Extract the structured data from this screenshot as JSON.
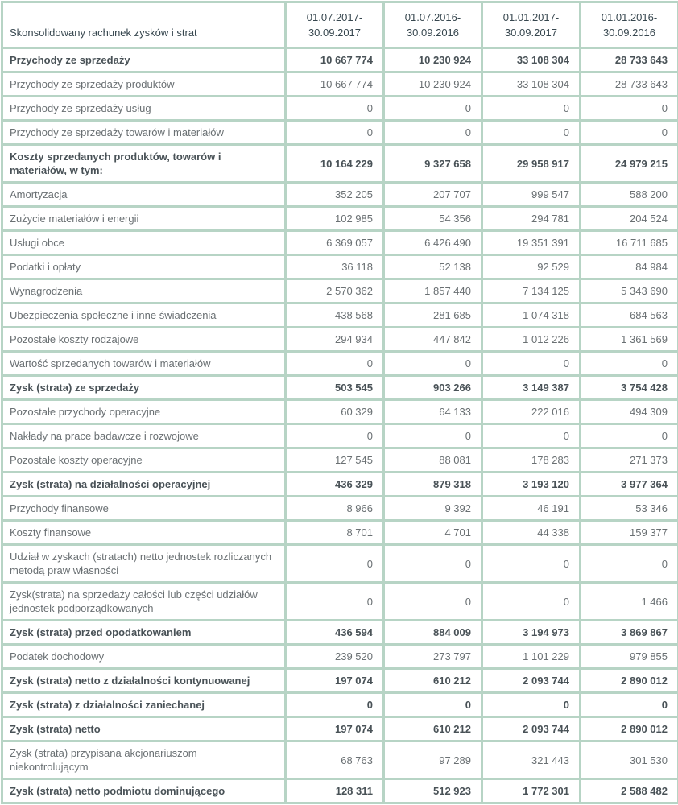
{
  "colors": {
    "border": "#b7d4c5",
    "header_bg": "#a6c9b8",
    "header_text": "#37474f",
    "text": "#6a7073",
    "bold_text": "#495257"
  },
  "table": {
    "title": "Skonsolidowany rachunek zysków i strat",
    "columns": [
      {
        "line1": "01.07.2017-",
        "line2": "30.09.2017"
      },
      {
        "line1": "01.07.2016-",
        "line2": "30.09.2016"
      },
      {
        "line1": "01.01.2017-",
        "line2": "30.09.2017"
      },
      {
        "line1": "01.01.2016-",
        "line2": "30.09.2016"
      }
    ],
    "rows": [
      {
        "label": "Przychody ze sprzedaży",
        "values": [
          "10 667 774",
          "10 230 924",
          "33 108 304",
          "28 733 643"
        ],
        "bold": true
      },
      {
        "label": "Przychody ze sprzedaży produktów",
        "values": [
          "10 667 774",
          "10 230 924",
          "33 108 304",
          "28 733 643"
        ],
        "bold": false
      },
      {
        "label": "Przychody ze sprzedaży usług",
        "values": [
          "0",
          "0",
          "0",
          "0"
        ],
        "bold": false
      },
      {
        "label": "Przychody ze sprzedaży towarów i materiałów",
        "values": [
          "0",
          "0",
          "0",
          "0"
        ],
        "bold": false
      },
      {
        "label": "Koszty sprzedanych produktów, towarów i materiałów, w tym:",
        "values": [
          "10 164 229",
          "9 327 658",
          "29 958 917",
          "24 979 215"
        ],
        "bold": true
      },
      {
        "label": "Amortyzacja",
        "values": [
          "352 205",
          "207 707",
          "999 547",
          "588 200"
        ],
        "bold": false
      },
      {
        "label": "Zużycie materiałów i energii",
        "values": [
          "102 985",
          "54 356",
          "294 781",
          "204 524"
        ],
        "bold": false
      },
      {
        "label": "Usługi obce",
        "values": [
          "6 369 057",
          "6 426 490",
          "19 351 391",
          "16 711 685"
        ],
        "bold": false
      },
      {
        "label": "Podatki i opłaty",
        "values": [
          "36 118",
          "52 138",
          "92 529",
          "84 984"
        ],
        "bold": false
      },
      {
        "label": "Wynagrodzenia",
        "values": [
          "2 570 362",
          "1 857 440",
          "7 134 125",
          "5 343 690"
        ],
        "bold": false
      },
      {
        "label": "Ubezpieczenia społeczne i inne świadczenia",
        "values": [
          "438 568",
          "281 685",
          "1 074 318",
          "684 563"
        ],
        "bold": false
      },
      {
        "label": "Pozostałe koszty rodzajowe",
        "values": [
          "294 934",
          "447 842",
          "1 012 226",
          "1 361 569"
        ],
        "bold": false
      },
      {
        "label": "Wartość sprzedanych towarów i materiałów",
        "values": [
          "0",
          "0",
          "0",
          "0"
        ],
        "bold": false
      },
      {
        "label": "Zysk (strata) ze sprzedaży",
        "values": [
          "503 545",
          "903 266",
          "3 149 387",
          "3 754 428"
        ],
        "bold": true
      },
      {
        "label": "Pozostałe przychody operacyjne",
        "values": [
          "60 329",
          "64 133",
          "222 016",
          "494 309"
        ],
        "bold": false
      },
      {
        "label": "Nakłady na prace badawcze i rozwojowe",
        "values": [
          "0",
          "0",
          "0",
          "0"
        ],
        "bold": false
      },
      {
        "label": "Pozostałe koszty operacyjne",
        "values": [
          "127 545",
          "88 081",
          "178 283",
          "271 373"
        ],
        "bold": false
      },
      {
        "label": "Zysk (strata) na działalności operacyjnej",
        "values": [
          "436 329",
          "879 318",
          "3 193 120",
          "3 977 364"
        ],
        "bold": true
      },
      {
        "label": "Przychody finansowe",
        "values": [
          "8 966",
          "9 392",
          "46 191",
          "53 346"
        ],
        "bold": false
      },
      {
        "label": "Koszty finansowe",
        "values": [
          "8 701",
          "4 701",
          "44 338",
          "159 377"
        ],
        "bold": false
      },
      {
        "label": "Udział w zyskach (stratach) netto jednostek rozliczanych metodą praw własności",
        "values": [
          "0",
          "0",
          "0",
          "0"
        ],
        "bold": false
      },
      {
        "label": "Zysk(strata) na sprzedaży całości lub części udziałów jednostek podporządkowanych",
        "values": [
          "0",
          "0",
          "0",
          "1 466"
        ],
        "bold": false
      },
      {
        "label": "Zysk (strata) przed opodatkowaniem",
        "values": [
          "436 594",
          "884 009",
          "3 194 973",
          "3 869 867"
        ],
        "bold": true
      },
      {
        "label": "Podatek dochodowy",
        "values": [
          "239 520",
          "273 797",
          "1 101 229",
          "979 855"
        ],
        "bold": false
      },
      {
        "label": "Zysk (strata) netto z działalności kontynuowanej",
        "values": [
          "197 074",
          "610 212",
          "2 093 744",
          "2 890 012"
        ],
        "bold": true
      },
      {
        "label": "Zysk (strata) z działalności zaniechanej",
        "values": [
          "0",
          "0",
          "0",
          "0"
        ],
        "bold": true
      },
      {
        "label": "Zysk (strata) netto",
        "values": [
          "197 074",
          "610 212",
          "2 093 744",
          "2 890 012"
        ],
        "bold": true
      },
      {
        "label": "Zysk (strata) przypisana akcjonariuszom niekontrolującym",
        "values": [
          "68 763",
          "97 289",
          "321 443",
          "301 530"
        ],
        "bold": false
      },
      {
        "label": "Zysk (strata) netto podmiotu dominującego",
        "values": [
          "128 311",
          "512 923",
          "1 772 301",
          "2 588 482"
        ],
        "bold": true
      }
    ]
  }
}
